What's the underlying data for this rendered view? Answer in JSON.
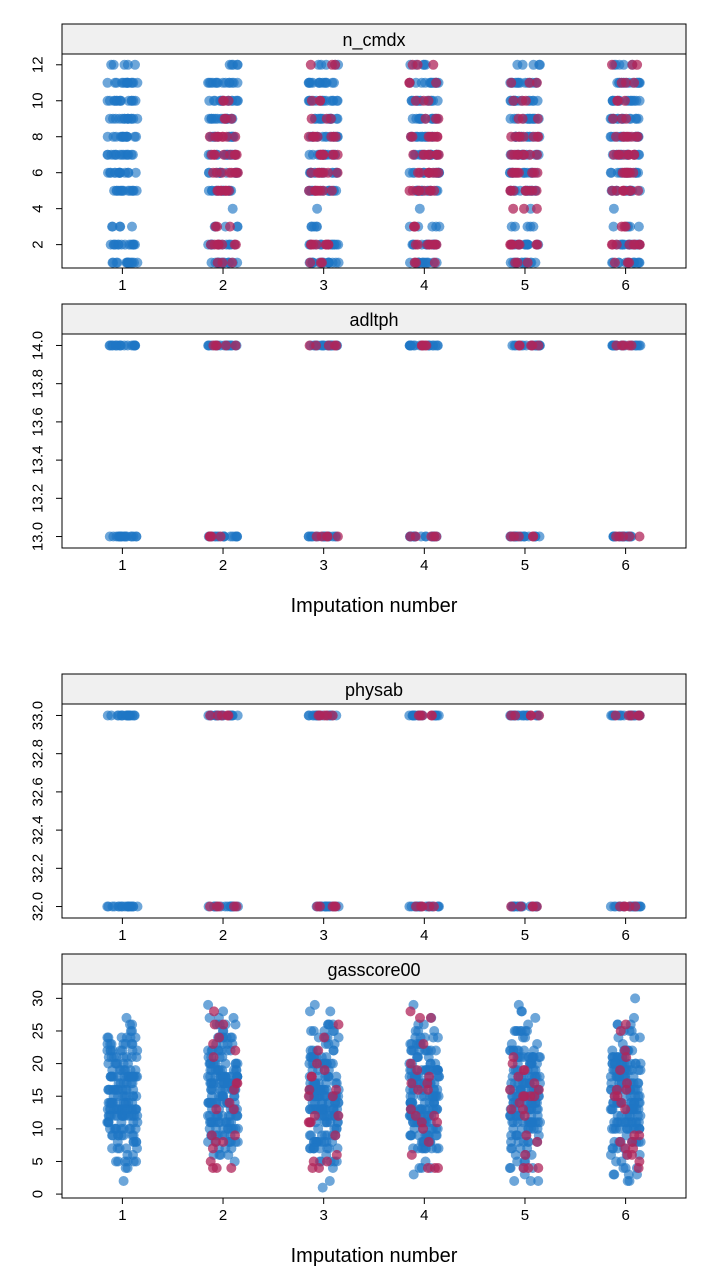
{
  "colors": {
    "observed": "#1f77c4",
    "imputed": "#b0245a",
    "strip_bg": "#f0f0f0",
    "frame": "#000000"
  },
  "chart_data": [
    {
      "type": "scatter",
      "title": "n_cmdx",
      "xlabel": "",
      "x_ticks": [
        "1",
        "2",
        "3",
        "4",
        "5",
        "6"
      ],
      "y_ticks": [
        "2",
        "4",
        "6",
        "8",
        "10",
        "12"
      ],
      "ylim": [
        0.7,
        12.6
      ],
      "xlim": [
        0.4,
        6.6
      ],
      "jitter": 0.15,
      "series": [
        {
          "values": [
            [
              1,
              [
                1,
                2,
                3,
                5,
                6,
                7,
                8,
                9,
                10,
                11,
                12
              ],
              4
            ],
            [
              2,
              [
                1,
                2,
                3,
                4,
                5,
                6,
                7,
                8,
                9,
                10,
                11,
                12
              ],
              3
            ],
            [
              3,
              [
                1,
                2,
                3,
                4,
                5,
                6,
                7,
                8,
                9,
                10,
                11,
                12
              ],
              3
            ],
            [
              4,
              [
                1,
                2,
                3,
                4,
                5,
                6,
                7,
                8,
                9,
                10,
                11,
                12
              ],
              3
            ],
            [
              5,
              [
                1,
                2,
                3,
                4,
                5,
                6,
                7,
                8,
                9,
                10,
                11,
                12
              ],
              3
            ],
            [
              6,
              [
                1,
                2,
                3,
                4,
                5,
                6,
                7,
                8,
                9,
                10,
                11,
                12
              ],
              3
            ]
          ]
        }
      ],
      "imputed_levels": [
        [],
        [
          1,
          2,
          3,
          5,
          6,
          7,
          8,
          9,
          10
        ],
        [
          1,
          2,
          5,
          6,
          7,
          8,
          9,
          10,
          12
        ],
        [
          1,
          2,
          3,
          5,
          6,
          7,
          8,
          9,
          10,
          11,
          12
        ],
        [
          1,
          2,
          4,
          5,
          6,
          7,
          8,
          9,
          10,
          11
        ],
        [
          1,
          2,
          3,
          5,
          6,
          7,
          8,
          9,
          10,
          11,
          12
        ]
      ]
    },
    {
      "type": "scatter",
      "title": "adltph",
      "xlabel": "Imputation number",
      "x_ticks": [
        "1",
        "2",
        "3",
        "4",
        "5",
        "6"
      ],
      "y_ticks": [
        "13.0",
        "13.2",
        "13.4",
        "13.6",
        "13.8",
        "14.0"
      ],
      "ylim": [
        12.94,
        14.06
      ],
      "xlim": [
        0.4,
        6.6
      ],
      "levels": [
        13.0,
        14.0
      ],
      "imputed_groups": [
        2,
        3,
        4,
        5,
        6
      ]
    },
    {
      "type": "scatter",
      "title": "physab",
      "xlabel": "",
      "x_ticks": [
        "1",
        "2",
        "3",
        "4",
        "5",
        "6"
      ],
      "y_ticks": [
        "32.0",
        "32.2",
        "32.4",
        "32.6",
        "32.8",
        "33.0"
      ],
      "ylim": [
        31.94,
        33.06
      ],
      "xlim": [
        0.4,
        6.6
      ],
      "levels": [
        32.0,
        33.0
      ],
      "imputed_groups": [
        2,
        3,
        4,
        5,
        6
      ]
    },
    {
      "type": "scatter",
      "title": "gasscore00",
      "xlabel": "Imputation number",
      "x_ticks": [
        "1",
        "2",
        "3",
        "4",
        "5",
        "6"
      ],
      "y_ticks": [
        "0",
        "5",
        "10",
        "15",
        "20",
        "25",
        "30"
      ],
      "ylim": [
        -0.6,
        32.2
      ],
      "xlim": [
        0.4,
        6.6
      ],
      "range": [
        1,
        31
      ],
      "imputed_range": [
        4,
        30
      ]
    }
  ]
}
